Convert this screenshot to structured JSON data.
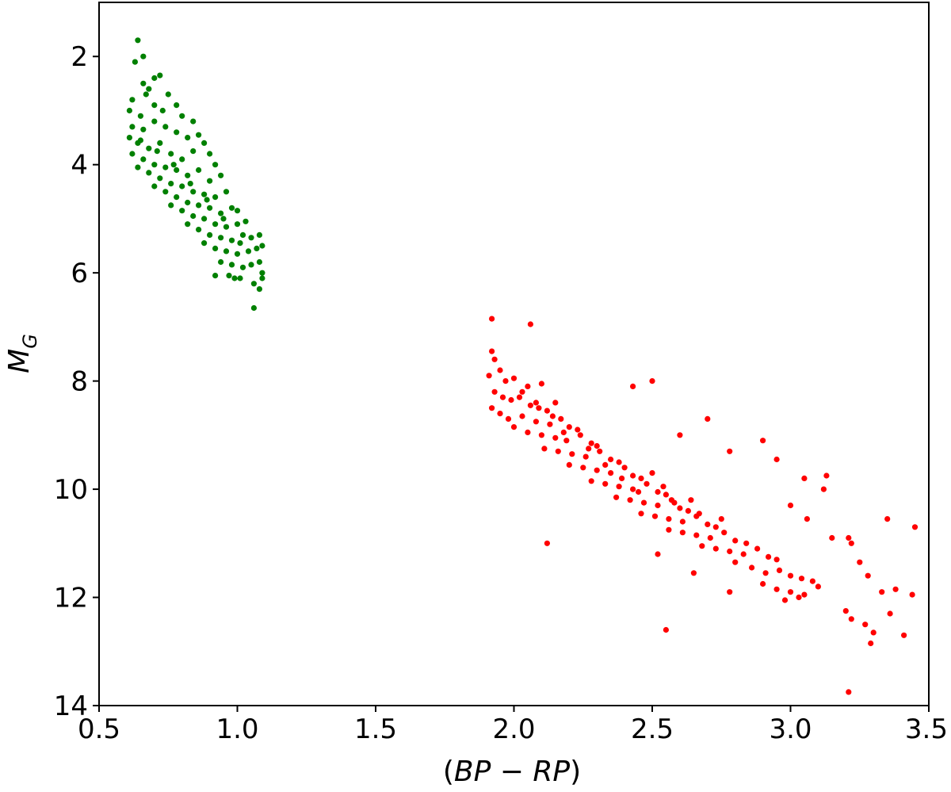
{
  "chart_data": {
    "type": "scatter",
    "title": "",
    "xlabel": {
      "open": "(",
      "bp": "BP",
      "minus": " − ",
      "rp": "RP",
      "close": ")"
    },
    "ylabel": {
      "main": "M",
      "sub": "G"
    },
    "xlim": [
      0.5,
      3.5
    ],
    "ylim": [
      14,
      1
    ],
    "y_inverted": true,
    "grid": false,
    "legend": "none",
    "x_ticks": [
      0.5,
      1.0,
      1.5,
      2.0,
      2.5,
      3.0,
      3.5
    ],
    "x_tick_labels": [
      "0.5",
      "1.0",
      "1.5",
      "2.0",
      "2.5",
      "3.0",
      "3.5"
    ],
    "y_ticks": [
      2,
      4,
      6,
      8,
      10,
      12,
      14
    ],
    "y_tick_labels": [
      "2",
      "4",
      "6",
      "8",
      "10",
      "12",
      "14"
    ],
    "series": [
      {
        "color": "#008000",
        "points": [
          [
            0.64,
            1.7
          ],
          [
            0.66,
            2.0
          ],
          [
            0.63,
            2.1
          ],
          [
            0.72,
            2.35
          ],
          [
            0.7,
            2.4
          ],
          [
            0.66,
            2.5
          ],
          [
            0.68,
            2.6
          ],
          [
            0.62,
            2.8
          ],
          [
            0.67,
            2.7
          ],
          [
            0.7,
            2.9
          ],
          [
            0.75,
            2.7
          ],
          [
            0.73,
            3.0
          ],
          [
            0.61,
            3.0
          ],
          [
            0.65,
            3.1
          ],
          [
            0.78,
            2.9
          ],
          [
            0.8,
            3.1
          ],
          [
            0.84,
            3.2
          ],
          [
            0.62,
            3.3
          ],
          [
            0.66,
            3.35
          ],
          [
            0.7,
            3.2
          ],
          [
            0.74,
            3.3
          ],
          [
            0.78,
            3.4
          ],
          [
            0.82,
            3.5
          ],
          [
            0.86,
            3.45
          ],
          [
            0.88,
            3.6
          ],
          [
            0.61,
            3.5
          ],
          [
            0.64,
            3.6
          ],
          [
            0.68,
            3.7
          ],
          [
            0.72,
            3.6
          ],
          [
            0.76,
            3.8
          ],
          [
            0.8,
            3.9
          ],
          [
            0.84,
            3.75
          ],
          [
            0.9,
            3.8
          ],
          [
            0.92,
            4.0
          ],
          [
            0.62,
            3.8
          ],
          [
            0.66,
            3.9
          ],
          [
            0.7,
            4.0
          ],
          [
            0.74,
            4.05
          ],
          [
            0.78,
            4.1
          ],
          [
            0.82,
            4.2
          ],
          [
            0.86,
            4.1
          ],
          [
            0.9,
            4.3
          ],
          [
            0.94,
            4.2
          ],
          [
            0.64,
            4.05
          ],
          [
            0.68,
            4.15
          ],
          [
            0.72,
            4.25
          ],
          [
            0.76,
            4.35
          ],
          [
            0.8,
            4.4
          ],
          [
            0.84,
            4.5
          ],
          [
            0.88,
            4.55
          ],
          [
            0.92,
            4.6
          ],
          [
            0.96,
            4.5
          ],
          [
            0.7,
            4.4
          ],
          [
            0.74,
            4.5
          ],
          [
            0.78,
            4.6
          ],
          [
            0.82,
            4.7
          ],
          [
            0.86,
            4.75
          ],
          [
            0.9,
            4.8
          ],
          [
            0.94,
            4.9
          ],
          [
            0.98,
            4.8
          ],
          [
            1.0,
            4.85
          ],
          [
            0.76,
            4.75
          ],
          [
            0.8,
            4.85
          ],
          [
            0.84,
            4.95
          ],
          [
            0.88,
            5.0
          ],
          [
            0.92,
            5.1
          ],
          [
            0.96,
            5.15
          ],
          [
            1.0,
            5.1
          ],
          [
            1.03,
            5.05
          ],
          [
            0.82,
            5.1
          ],
          [
            0.86,
            5.2
          ],
          [
            0.9,
            5.3
          ],
          [
            0.94,
            5.35
          ],
          [
            0.98,
            5.4
          ],
          [
            1.02,
            5.3
          ],
          [
            1.05,
            5.35
          ],
          [
            1.08,
            5.3
          ],
          [
            0.88,
            5.45
          ],
          [
            0.92,
            5.55
          ],
          [
            0.96,
            5.6
          ],
          [
            1.0,
            5.65
          ],
          [
            1.04,
            5.6
          ],
          [
            1.07,
            5.55
          ],
          [
            1.09,
            5.5
          ],
          [
            0.94,
            5.8
          ],
          [
            0.98,
            5.85
          ],
          [
            1.02,
            5.9
          ],
          [
            1.05,
            5.85
          ],
          [
            1.08,
            5.8
          ],
          [
            1.09,
            6.0
          ],
          [
            0.97,
            6.05
          ],
          [
            1.01,
            6.1
          ],
          [
            1.06,
            6.2
          ],
          [
            1.09,
            6.1
          ],
          [
            0.92,
            6.05
          ],
          [
            1.08,
            6.3
          ],
          [
            1.06,
            6.65
          ],
          [
            0.99,
            6.1
          ],
          [
            0.65,
            3.55
          ],
          [
            0.71,
            3.75
          ],
          [
            0.77,
            4.0
          ],
          [
            0.83,
            4.35
          ],
          [
            0.89,
            4.65
          ],
          [
            0.95,
            5.0
          ],
          [
            1.01,
            5.45
          ]
        ]
      },
      {
        "color": "#ff0000",
        "points": [
          [
            1.92,
            6.85
          ],
          [
            2.06,
            6.95
          ],
          [
            1.92,
            7.45
          ],
          [
            1.93,
            7.6
          ],
          [
            1.95,
            7.8
          ],
          [
            1.91,
            7.9
          ],
          [
            1.97,
            8.0
          ],
          [
            2.0,
            7.95
          ],
          [
            2.05,
            8.1
          ],
          [
            2.1,
            8.05
          ],
          [
            1.93,
            8.2
          ],
          [
            1.96,
            8.3
          ],
          [
            1.99,
            8.35
          ],
          [
            2.02,
            8.3
          ],
          [
            2.06,
            8.45
          ],
          [
            2.09,
            8.5
          ],
          [
            2.12,
            8.55
          ],
          [
            2.15,
            8.4
          ],
          [
            1.92,
            8.5
          ],
          [
            1.95,
            8.6
          ],
          [
            1.98,
            8.7
          ],
          [
            2.03,
            8.65
          ],
          [
            2.08,
            8.75
          ],
          [
            2.13,
            8.8
          ],
          [
            2.17,
            8.7
          ],
          [
            2.2,
            8.85
          ],
          [
            2.23,
            8.9
          ],
          [
            2.0,
            8.85
          ],
          [
            2.05,
            8.95
          ],
          [
            2.1,
            9.0
          ],
          [
            2.15,
            9.05
          ],
          [
            2.19,
            9.1
          ],
          [
            2.24,
            9.0
          ],
          [
            2.28,
            9.15
          ],
          [
            2.3,
            9.2
          ],
          [
            2.11,
            9.25
          ],
          [
            2.16,
            9.3
          ],
          [
            2.21,
            9.35
          ],
          [
            2.26,
            9.4
          ],
          [
            2.31,
            9.3
          ],
          [
            2.35,
            9.45
          ],
          [
            2.38,
            9.5
          ],
          [
            2.2,
            9.55
          ],
          [
            2.25,
            9.6
          ],
          [
            2.3,
            9.65
          ],
          [
            2.35,
            9.7
          ],
          [
            2.4,
            9.6
          ],
          [
            2.43,
            9.75
          ],
          [
            2.46,
            9.8
          ],
          [
            2.28,
            9.85
          ],
          [
            2.33,
            9.9
          ],
          [
            2.38,
            9.95
          ],
          [
            2.43,
            10.0
          ],
          [
            2.48,
            9.9
          ],
          [
            2.52,
            10.05
          ],
          [
            2.55,
            10.1
          ],
          [
            2.37,
            10.15
          ],
          [
            2.42,
            10.2
          ],
          [
            2.47,
            10.25
          ],
          [
            2.52,
            10.3
          ],
          [
            2.57,
            10.2
          ],
          [
            2.6,
            10.35
          ],
          [
            2.63,
            10.4
          ],
          [
            2.46,
            10.45
          ],
          [
            2.51,
            10.5
          ],
          [
            2.56,
            10.55
          ],
          [
            2.61,
            10.6
          ],
          [
            2.66,
            10.5
          ],
          [
            2.7,
            10.65
          ],
          [
            2.73,
            10.7
          ],
          [
            2.56,
            10.75
          ],
          [
            2.61,
            10.8
          ],
          [
            2.66,
            10.85
          ],
          [
            2.71,
            10.9
          ],
          [
            2.76,
            10.8
          ],
          [
            2.8,
            10.95
          ],
          [
            2.84,
            11.0
          ],
          [
            2.68,
            11.05
          ],
          [
            2.73,
            11.1
          ],
          [
            2.78,
            11.15
          ],
          [
            2.83,
            11.2
          ],
          [
            2.88,
            11.1
          ],
          [
            2.92,
            11.25
          ],
          [
            2.95,
            11.3
          ],
          [
            2.8,
            11.35
          ],
          [
            2.86,
            11.45
          ],
          [
            2.91,
            11.55
          ],
          [
            2.96,
            11.5
          ],
          [
            3.0,
            11.6
          ],
          [
            3.04,
            11.65
          ],
          [
            3.08,
            11.7
          ],
          [
            2.9,
            11.75
          ],
          [
            2.95,
            11.85
          ],
          [
            3.0,
            11.9
          ],
          [
            3.05,
            11.95
          ],
          [
            3.1,
            11.8
          ],
          [
            2.98,
            12.05
          ],
          [
            3.03,
            12.0
          ],
          [
            2.78,
            9.3
          ],
          [
            2.7,
            8.7
          ],
          [
            2.5,
            8.0
          ],
          [
            2.43,
            8.1
          ],
          [
            2.6,
            9.0
          ],
          [
            2.9,
            9.1
          ],
          [
            2.95,
            9.45
          ],
          [
            3.05,
            9.8
          ],
          [
            3.13,
            9.75
          ],
          [
            3.12,
            10.0
          ],
          [
            3.0,
            10.3
          ],
          [
            3.06,
            10.55
          ],
          [
            3.15,
            10.9
          ],
          [
            3.22,
            11.0
          ],
          [
            3.25,
            11.35
          ],
          [
            3.28,
            11.6
          ],
          [
            3.33,
            11.9
          ],
          [
            3.38,
            11.85
          ],
          [
            3.44,
            11.95
          ],
          [
            3.45,
            10.7
          ],
          [
            3.35,
            10.55
          ],
          [
            3.2,
            12.25
          ],
          [
            3.22,
            12.4
          ],
          [
            3.27,
            12.5
          ],
          [
            3.3,
            12.65
          ],
          [
            3.36,
            12.3
          ],
          [
            3.41,
            12.7
          ],
          [
            3.29,
            12.85
          ],
          [
            3.21,
            13.75
          ],
          [
            2.55,
            12.6
          ],
          [
            2.78,
            11.9
          ],
          [
            2.65,
            11.55
          ],
          [
            2.12,
            11.0
          ],
          [
            2.52,
            11.2
          ],
          [
            3.21,
            10.9
          ],
          [
            2.03,
            8.2
          ],
          [
            2.08,
            8.4
          ],
          [
            2.14,
            8.65
          ],
          [
            2.18,
            8.95
          ],
          [
            2.27,
            9.25
          ],
          [
            2.33,
            9.55
          ],
          [
            2.39,
            9.8
          ],
          [
            2.45,
            10.05
          ],
          [
            2.5,
            9.7
          ],
          [
            2.54,
            9.95
          ],
          [
            2.58,
            10.25
          ],
          [
            2.64,
            10.2
          ],
          [
            2.67,
            10.45
          ],
          [
            2.75,
            10.55
          ]
        ]
      }
    ]
  }
}
